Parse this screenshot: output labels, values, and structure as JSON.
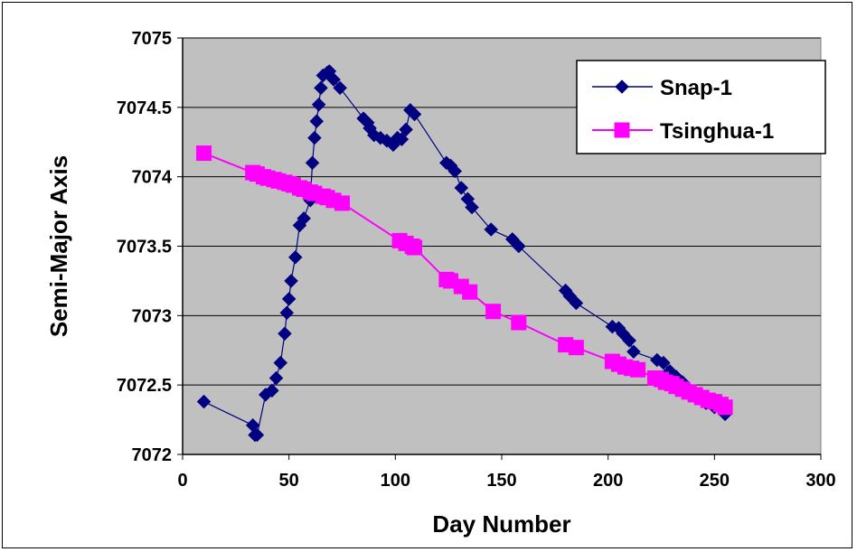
{
  "chart_data": {
    "type": "line",
    "xlabel": "Day Number",
    "ylabel": "Semi-Major Axis",
    "xlim": [
      0,
      300
    ],
    "ylim": [
      7072,
      7075
    ],
    "xticks": [
      "0",
      "50",
      "100",
      "150",
      "200",
      "250",
      "300"
    ],
    "yticks": [
      "7072",
      "7072.5",
      "7073",
      "7073.5",
      "7074",
      "7074.5",
      "7075"
    ],
    "grid": "horizontal",
    "legend": "top-right",
    "plot_background": "#c0c0c0",
    "series": [
      {
        "name": "Snap-1",
        "color": "#000080",
        "marker": "diamond",
        "x": [
          10,
          33,
          34,
          35,
          39,
          42,
          44,
          46,
          48,
          49,
          50,
          51,
          53,
          55,
          57,
          60,
          61,
          62,
          63,
          64,
          65,
          66,
          68,
          69,
          71,
          74,
          85,
          87,
          88,
          90,
          93,
          96,
          99,
          101,
          103,
          105,
          107,
          109,
          124,
          126,
          128,
          131,
          134,
          136,
          145,
          155,
          158,
          180,
          182,
          185,
          202,
          205,
          207,
          210,
          212,
          223,
          226,
          229,
          232,
          235,
          238,
          242,
          246,
          250,
          255
        ],
        "y": [
          7072.38,
          7072.21,
          7072.14,
          7072.14,
          7072.43,
          7072.46,
          7072.55,
          7072.66,
          7072.87,
          7073.02,
          7073.12,
          7073.25,
          7073.42,
          7073.65,
          7073.7,
          7073.83,
          7074.1,
          7074.28,
          7074.4,
          7074.52,
          7074.64,
          7074.73,
          7074.75,
          7074.76,
          7074.7,
          7074.64,
          7074.42,
          7074.39,
          7074.35,
          7074.3,
          7074.28,
          7074.26,
          7074.23,
          7074.28,
          7074.27,
          7074.34,
          7074.48,
          7074.45,
          7074.1,
          7074.08,
          7074.04,
          7073.92,
          7073.84,
          7073.78,
          7073.62,
          7073.55,
          7073.5,
          7073.18,
          7073.14,
          7073.09,
          7072.92,
          7072.91,
          7072.87,
          7072.82,
          7072.74,
          7072.68,
          7072.66,
          7072.6,
          7072.56,
          7072.52,
          7072.47,
          7072.43,
          7072.37,
          7072.34,
          7072.29
        ]
      },
      {
        "name": "Tsinghua-1",
        "color": "#ff00ff",
        "marker": "square",
        "x": [
          10,
          33,
          35,
          38,
          40,
          43,
          45,
          48,
          50,
          52,
          55,
          57,
          60,
          62,
          66,
          68,
          71,
          75,
          102,
          105,
          108,
          109,
          124,
          126,
          131,
          135,
          146,
          158,
          180,
          185,
          202,
          205,
          208,
          211,
          214,
          222,
          225,
          227,
          230,
          232,
          235,
          238,
          241,
          244,
          247,
          250,
          253,
          255
        ],
        "y": [
          7074.17,
          7074.03,
          7074.02,
          7074.0,
          7073.99,
          7073.98,
          7073.97,
          7073.96,
          7073.95,
          7073.94,
          7073.92,
          7073.91,
          7073.89,
          7073.88,
          7073.86,
          7073.85,
          7073.83,
          7073.81,
          7073.54,
          7073.52,
          7073.5,
          7073.49,
          7073.26,
          7073.25,
          7073.21,
          7073.17,
          7073.03,
          7072.95,
          7072.79,
          7072.77,
          7072.67,
          7072.65,
          7072.63,
          7072.62,
          7072.61,
          7072.55,
          7072.54,
          7072.52,
          7072.51,
          7072.49,
          7072.47,
          7072.45,
          7072.43,
          7072.41,
          7072.39,
          7072.38,
          7072.36,
          7072.34
        ]
      }
    ]
  }
}
